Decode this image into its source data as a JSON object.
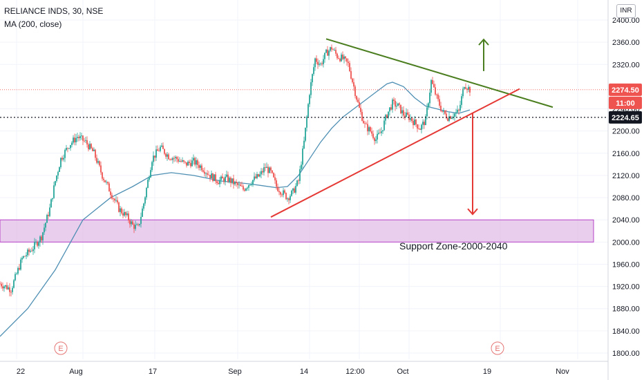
{
  "header": {
    "title": "RELIANCE INDS, 30, NSE",
    "indicator": "MA (200, close)",
    "currency": "INR"
  },
  "chart_data": {
    "type": "candlestick",
    "title": "RELIANCE INDS, 30, NSE",
    "ylim": [
      1780,
      2420
    ],
    "yticks": [
      2400,
      2360,
      2320,
      2240,
      2200,
      2160,
      2120,
      2080,
      2040,
      2000,
      1960,
      1920,
      1880,
      1840,
      1800
    ],
    "ytick_labels": [
      "2400.00",
      "2360.00",
      "2320.00",
      "2240.00",
      "2200.00",
      "2160.00",
      "2120.00",
      "2080.00",
      "2040.00",
      "2000.00",
      "1960.00",
      "1920.00",
      "1880.00",
      "1840.00",
      "1800.00"
    ],
    "xticks": [
      "22",
      "Aug",
      "17",
      "Sep",
      "14",
      "12:00",
      "Oct",
      "19",
      "Nov"
    ],
    "price_path": [
      [
        0,
        1925
      ],
      [
        4,
        1915
      ],
      [
        8,
        1970
      ],
      [
        12,
        1990
      ],
      [
        15,
        2010
      ],
      [
        18,
        2060
      ],
      [
        20,
        2110
      ],
      [
        22,
        2150
      ],
      [
        25,
        2175
      ],
      [
        28,
        2190
      ],
      [
        31,
        2180
      ],
      [
        34,
        2160
      ],
      [
        37,
        2120
      ],
      [
        40,
        2090
      ],
      [
        43,
        2060
      ],
      [
        46,
        2045
      ],
      [
        48,
        2030
      ],
      [
        50,
        2025
      ],
      [
        52,
        2070
      ],
      [
        55,
        2150
      ],
      [
        58,
        2170
      ],
      [
        61,
        2155
      ],
      [
        64,
        2150
      ],
      [
        67,
        2140
      ],
      [
        70,
        2145
      ],
      [
        73,
        2135
      ],
      [
        76,
        2120
      ],
      [
        79,
        2110
      ],
      [
        82,
        2115
      ],
      [
        85,
        2105
      ],
      [
        88,
        2095
      ],
      [
        91,
        2110
      ],
      [
        94,
        2120
      ],
      [
        96,
        2135
      ],
      [
        98,
        2125
      ],
      [
        100,
        2100
      ],
      [
        102,
        2090
      ],
      [
        104,
        2080
      ],
      [
        106,
        2090
      ],
      [
        108,
        2110
      ],
      [
        110,
        2180
      ],
      [
        112,
        2270
      ],
      [
        114,
        2330
      ],
      [
        116,
        2320
      ],
      [
        118,
        2340
      ],
      [
        120,
        2350
      ],
      [
        122,
        2335
      ],
      [
        124,
        2330
      ],
      [
        126,
        2320
      ],
      [
        128,
        2280
      ],
      [
        130,
        2240
      ],
      [
        132,
        2210
      ],
      [
        134,
        2200
      ],
      [
        136,
        2185
      ],
      [
        138,
        2200
      ],
      [
        140,
        2230
      ],
      [
        142,
        2250
      ],
      [
        144,
        2245
      ],
      [
        146,
        2230
      ],
      [
        148,
        2225
      ],
      [
        150,
        2215
      ],
      [
        152,
        2205
      ],
      [
        154,
        2220
      ],
      [
        156,
        2290
      ],
      [
        158,
        2260
      ],
      [
        160,
        2235
      ],
      [
        162,
        2225
      ],
      [
        164,
        2230
      ],
      [
        166,
        2235
      ],
      [
        168,
        2285
      ],
      [
        170,
        2274.5
      ]
    ],
    "ma_path": [
      [
        0,
        1830
      ],
      [
        10,
        1880
      ],
      [
        20,
        1950
      ],
      [
        30,
        2040
      ],
      [
        40,
        2080
      ],
      [
        48,
        2100
      ],
      [
        55,
        2120
      ],
      [
        62,
        2125
      ],
      [
        70,
        2120
      ],
      [
        80,
        2110
      ],
      [
        90,
        2105
      ],
      [
        100,
        2098
      ],
      [
        104,
        2100
      ],
      [
        108,
        2120
      ],
      [
        112,
        2150
      ],
      [
        116,
        2180
      ],
      [
        120,
        2205
      ],
      [
        124,
        2225
      ],
      [
        128,
        2240
      ],
      [
        132,
        2255
      ],
      [
        136,
        2270
      ],
      [
        140,
        2285
      ],
      [
        142,
        2288
      ],
      [
        146,
        2280
      ],
      [
        150,
        2260
      ],
      [
        154,
        2245
      ],
      [
        158,
        2240
      ],
      [
        162,
        2235
      ],
      [
        166,
        2232
      ],
      [
        170,
        2238
      ]
    ],
    "trendlines": [
      {
        "name": "resistance",
        "color": "#4a7d1e",
        "from": [
          118,
          2366
        ],
        "to": [
          200,
          2243
        ]
      },
      {
        "name": "support",
        "color": "#e53935",
        "from": [
          98,
          2045
        ],
        "to": [
          188,
          2276
        ]
      }
    ],
    "arrows": [
      {
        "name": "target-up",
        "color": "#4a7d1e",
        "x": 175,
        "from": 2308,
        "to": 2365
      },
      {
        "name": "target-down",
        "color": "#e53935",
        "x": 171,
        "from": 2232,
        "to": 2050
      }
    ],
    "support_zone": {
      "from": 2000,
      "to": 2040,
      "label": "Support Zone-2000-2040",
      "color": "#e1bee7"
    },
    "last_price": {
      "value": 2274.5,
      "label": "2274.50",
      "color": "#ef5350"
    },
    "countdown": {
      "label": "11:00"
    },
    "ref_line": {
      "value": 2224.65,
      "label": "2224.65"
    },
    "events": [
      {
        "x": 22,
        "label": "E"
      },
      {
        "x": 180,
        "label": "E"
      }
    ]
  }
}
